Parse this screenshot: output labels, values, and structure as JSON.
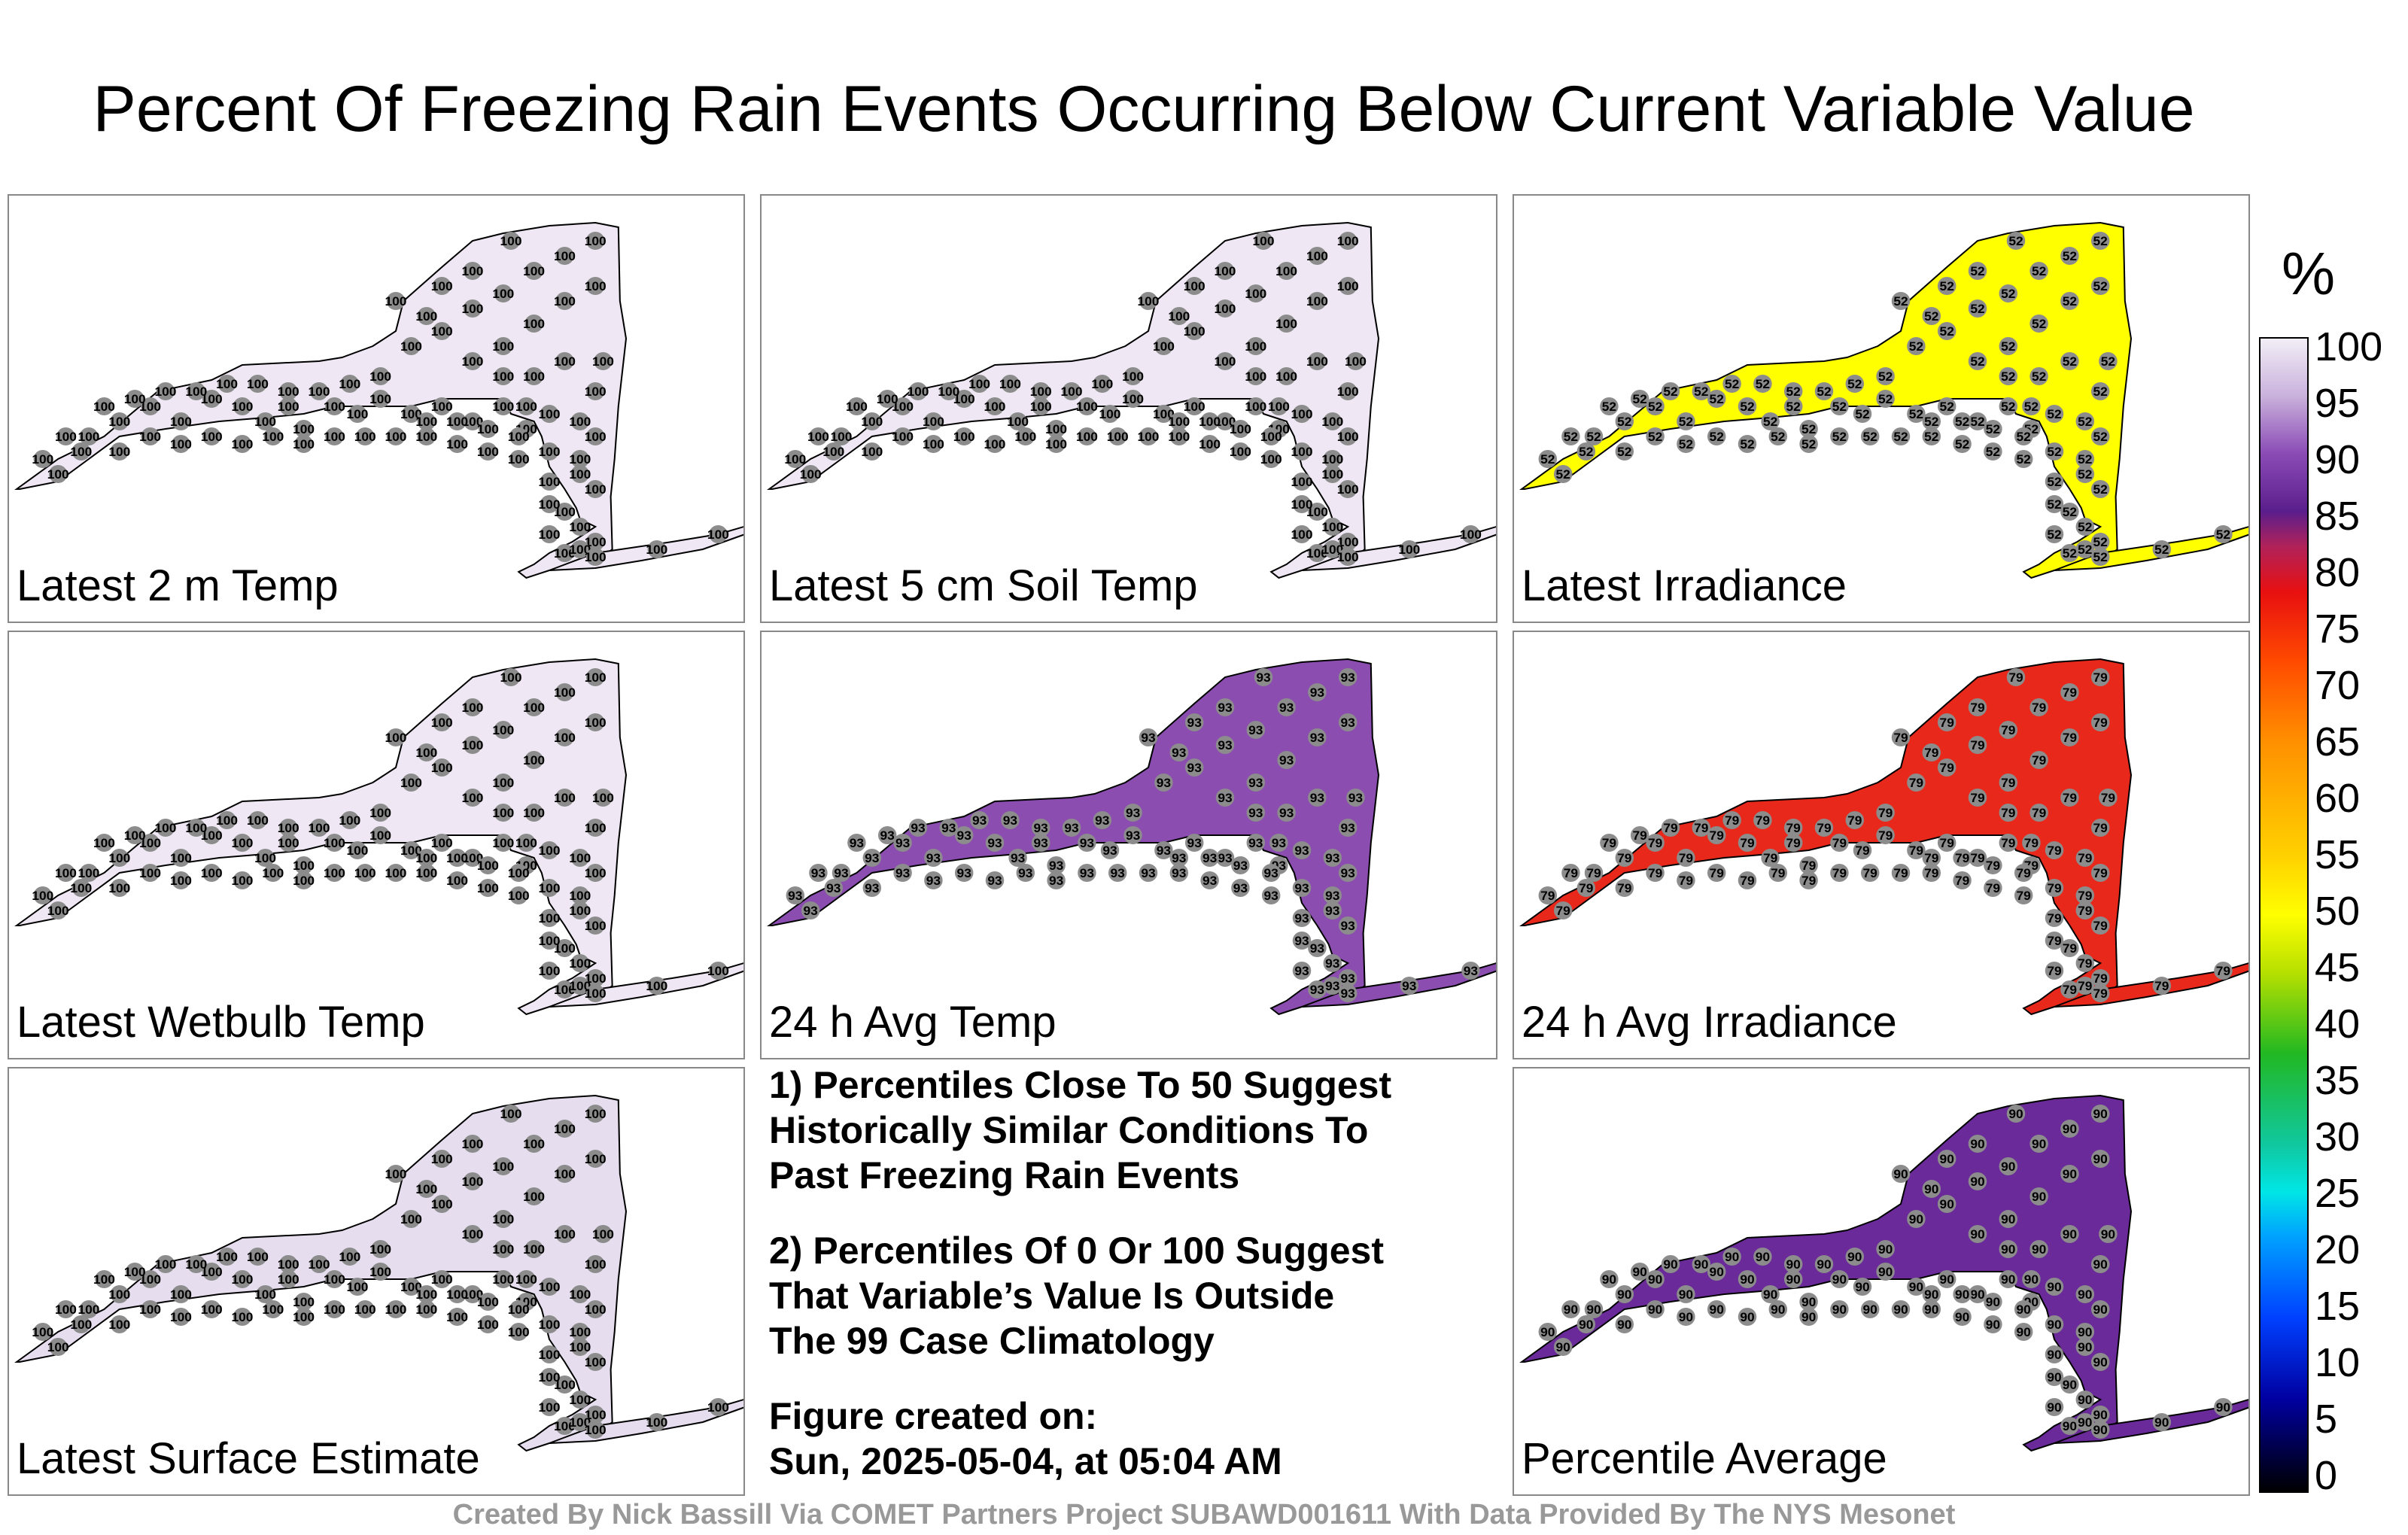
{
  "title": "Percent Of Freezing Rain Events Occurring Below Current Variable Value",
  "panels": [
    {
      "label": "Latest 2 m Temp",
      "fill": "#efe8f4",
      "value": 100
    },
    {
      "label": "Latest 5 cm Soil Temp",
      "fill": "#efe8f4",
      "value": 100
    },
    {
      "label": "Latest Irradiance",
      "fill": "#ffff00",
      "value": 52
    },
    {
      "label": "Latest Wetbulb Temp",
      "fill": "#efe8f4",
      "value": 100
    },
    {
      "label": "24 h Avg Temp",
      "fill": "#8b4db0",
      "value": 93
    },
    {
      "label": "24 h Avg Irradiance",
      "fill": "#e8281a",
      "value": 79
    },
    {
      "label": "Latest Surface Estimate",
      "fill": "#e6ddef",
      "value": 100
    },
    {
      "label": "Percentile Average",
      "fill": "#6a2a9a",
      "value": 90
    }
  ],
  "notes": {
    "line1": "1) Percentiles Close To 50 Suggest",
    "line2": "Historically Similar Conditions To",
    "line3": "Past Freezing Rain Events",
    "line4": "2) Percentiles Of 0 Or 100 Suggest",
    "line5": "That Variable’s Value Is Outside",
    "line6": "The 99 Case Climatology",
    "line7": "Figure created on:",
    "line8": "Sun, 2025-05-04, at 05:04 AM"
  },
  "colorbar": {
    "unit": "%",
    "ticks": [
      "100",
      "95",
      "90",
      "85",
      "80",
      "75",
      "70",
      "65",
      "60",
      "55",
      "50",
      "45",
      "40",
      "35",
      "30",
      "25",
      "20",
      "15",
      "10",
      "5",
      "0"
    ]
  },
  "footer": "Created By Nick Bassill Via COMET Partners Project SUBAWD001611 With Data Provided By The NYS Mesonet"
}
